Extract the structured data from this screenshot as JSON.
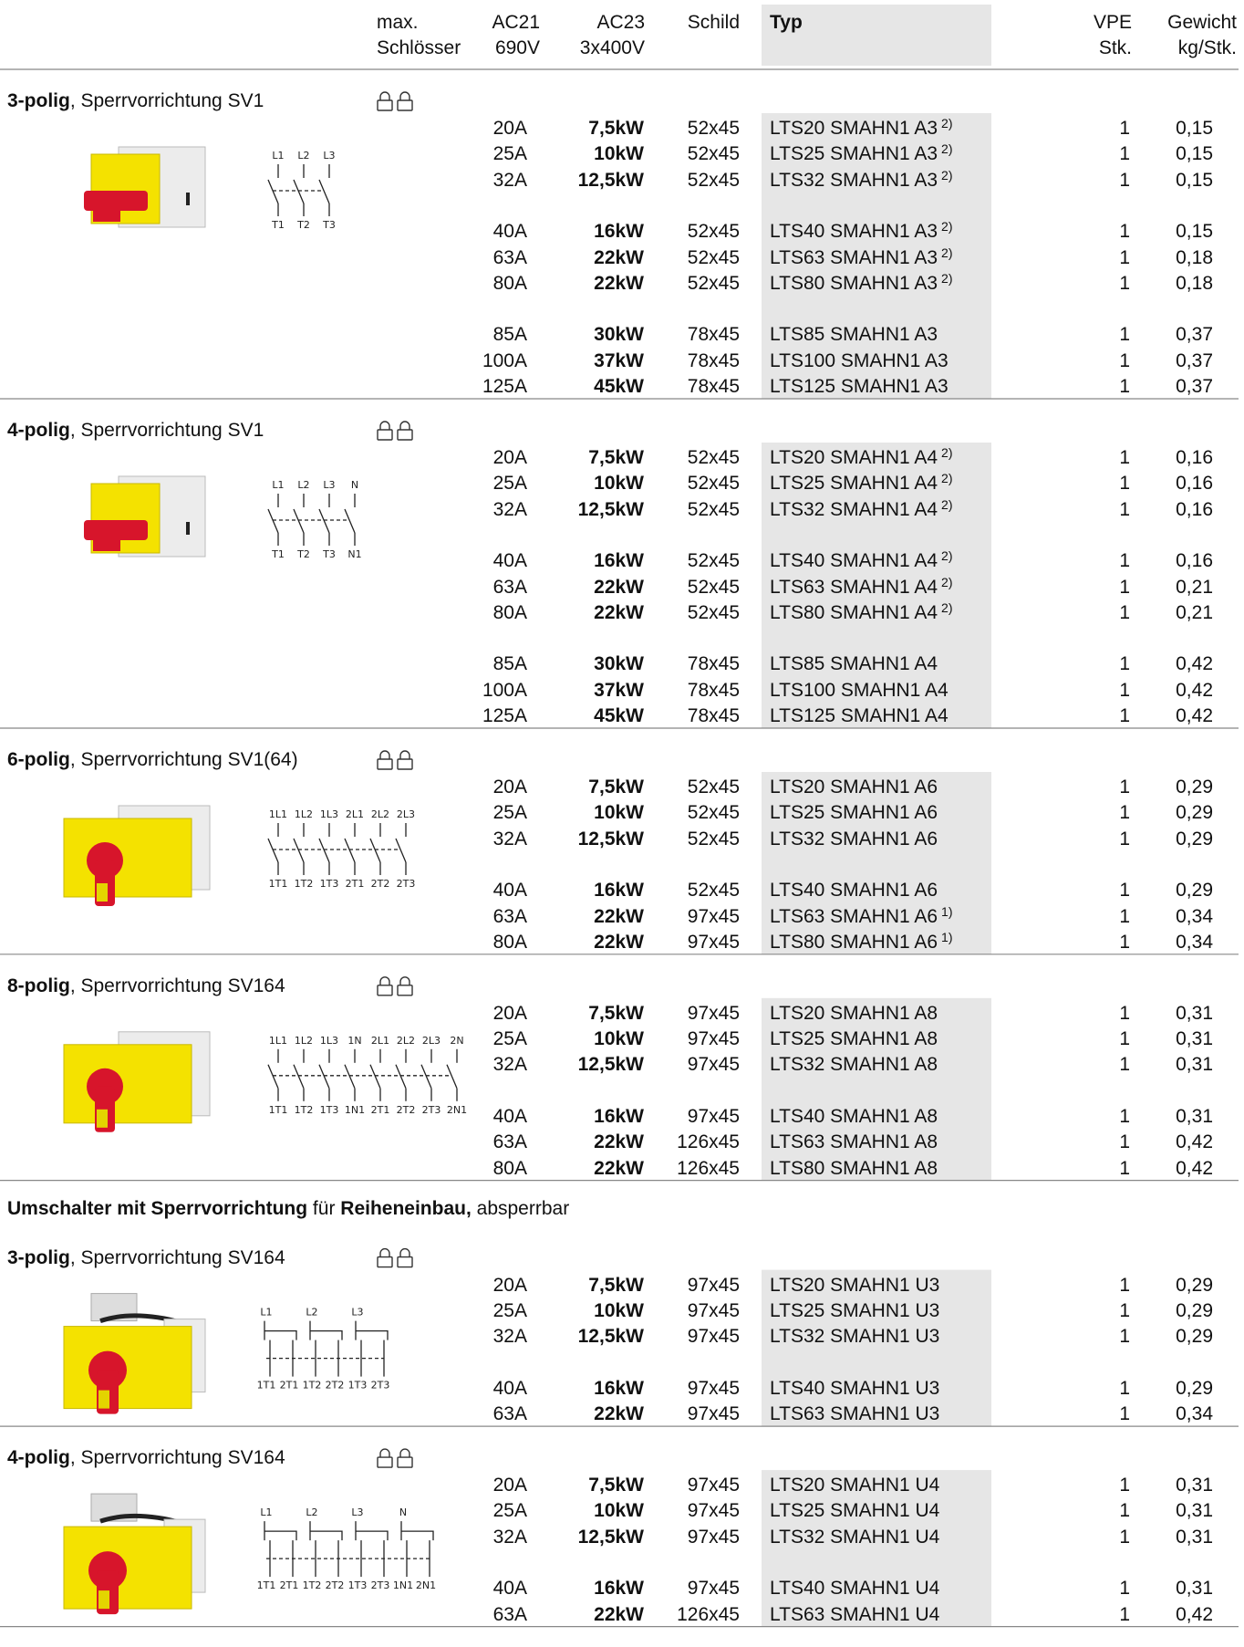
{
  "header": {
    "columns": [
      {
        "lines": [
          "max.",
          "Schlösser"
        ]
      },
      {
        "lines": [
          "AC21",
          "690V"
        ]
      },
      {
        "lines": [
          "AC23",
          "3x400V"
        ]
      },
      {
        "lines": [
          "Schild"
        ]
      },
      {
        "lines": [
          "Typ"
        ]
      },
      {
        "lines": [
          "VPE",
          "Stk."
        ]
      },
      {
        "lines": [
          "Gewicht",
          "kg/Stk."
        ]
      }
    ]
  },
  "blocks": [
    {
      "title_bold": "3-polig",
      "title_rest": ", Sperrvorrichtung SV1",
      "diagram": {
        "top": [
          "L1",
          "L2",
          "L3"
        ],
        "bottom": [
          "T1",
          "T2",
          "T3"
        ]
      },
      "groups": [
        [
          {
            "ac21": "20A",
            "ac23": "7,5kW",
            "schild": "52x45",
            "typ": "LTS20 SMAHN1 A3",
            "note": "2)",
            "vpe": "1",
            "kg": "0,15"
          },
          {
            "ac21": "25A",
            "ac23": "10kW",
            "schild": "52x45",
            "typ": "LTS25 SMAHN1 A3",
            "note": "2)",
            "vpe": "1",
            "kg": "0,15"
          },
          {
            "ac21": "32A",
            "ac23": "12,5kW",
            "schild": "52x45",
            "typ": "LTS32 SMAHN1 A3",
            "note": "2)",
            "vpe": "1",
            "kg": "0,15"
          }
        ],
        [
          {
            "ac21": "40A",
            "ac23": "16kW",
            "schild": "52x45",
            "typ": "LTS40 SMAHN1 A3",
            "note": "2)",
            "vpe": "1",
            "kg": "0,15"
          },
          {
            "ac21": "63A",
            "ac23": "22kW",
            "schild": "52x45",
            "typ": "LTS63 SMAHN1 A3",
            "note": "2)",
            "vpe": "1",
            "kg": "0,18"
          },
          {
            "ac21": "80A",
            "ac23": "22kW",
            "schild": "52x45",
            "typ": "LTS80 SMAHN1 A3",
            "note": "2)",
            "vpe": "1",
            "kg": "0,18"
          }
        ],
        [
          {
            "ac21": "85A",
            "ac23": "30kW",
            "schild": "78x45",
            "typ": "LTS85 SMAHN1 A3",
            "vpe": "1",
            "kg": "0,37"
          },
          {
            "ac21": "100A",
            "ac23": "37kW",
            "schild": "78x45",
            "typ": "LTS100 SMAHN1 A3",
            "vpe": "1",
            "kg": "0,37"
          },
          {
            "ac21": "125A",
            "ac23": "45kW",
            "schild": "78x45",
            "typ": "LTS125 SMAHN1 A3",
            "vpe": "1",
            "kg": "0,37"
          }
        ]
      ]
    },
    {
      "title_bold": "4-polig",
      "title_rest": ", Sperrvorrichtung SV1",
      "diagram": {
        "top": [
          "L1",
          "L2",
          "L3",
          "N"
        ],
        "bottom": [
          "T1",
          "T2",
          "T3",
          "N1"
        ]
      },
      "groups": [
        [
          {
            "ac21": "20A",
            "ac23": "7,5kW",
            "schild": "52x45",
            "typ": "LTS20 SMAHN1 A4",
            "note": "2)",
            "vpe": "1",
            "kg": "0,16"
          },
          {
            "ac21": "25A",
            "ac23": "10kW",
            "schild": "52x45",
            "typ": "LTS25 SMAHN1 A4",
            "note": "2)",
            "vpe": "1",
            "kg": "0,16"
          },
          {
            "ac21": "32A",
            "ac23": "12,5kW",
            "schild": "52x45",
            "typ": "LTS32 SMAHN1 A4",
            "note": "2)",
            "vpe": "1",
            "kg": "0,16"
          }
        ],
        [
          {
            "ac21": "40A",
            "ac23": "16kW",
            "schild": "52x45",
            "typ": "LTS40 SMAHN1 A4",
            "note": "2)",
            "vpe": "1",
            "kg": "0,16"
          },
          {
            "ac21": "63A",
            "ac23": "22kW",
            "schild": "52x45",
            "typ": "LTS63 SMAHN1 A4",
            "note": "2)",
            "vpe": "1",
            "kg": "0,21"
          },
          {
            "ac21": "80A",
            "ac23": "22kW",
            "schild": "52x45",
            "typ": "LTS80 SMAHN1 A4",
            "note": "2)",
            "vpe": "1",
            "kg": "0,21"
          }
        ],
        [
          {
            "ac21": "85A",
            "ac23": "30kW",
            "schild": "78x45",
            "typ": "LTS85 SMAHN1 A4",
            "vpe": "1",
            "kg": "0,42"
          },
          {
            "ac21": "100A",
            "ac23": "37kW",
            "schild": "78x45",
            "typ": "LTS100 SMAHN1 A4",
            "vpe": "1",
            "kg": "0,42"
          },
          {
            "ac21": "125A",
            "ac23": "45kW",
            "schild": "78x45",
            "typ": "LTS125 SMAHN1 A4",
            "vpe": "1",
            "kg": "0,42"
          }
        ]
      ]
    },
    {
      "title_bold": "6-polig",
      "title_rest": ", Sperrvorrichtung SV1(64)",
      "diagram": {
        "top": [
          "1L1",
          "1L2",
          "1L3",
          "2L1",
          "2L2",
          "2L3"
        ],
        "bottom": [
          "1T1",
          "1T2",
          "1T3",
          "2T1",
          "2T2",
          "2T3"
        ]
      },
      "groups": [
        [
          {
            "ac21": "20A",
            "ac23": "7,5kW",
            "schild": "52x45",
            "typ": "LTS20 SMAHN1 A6",
            "vpe": "1",
            "kg": "0,29"
          },
          {
            "ac21": "25A",
            "ac23": "10kW",
            "schild": "52x45",
            "typ": "LTS25 SMAHN1 A6",
            "vpe": "1",
            "kg": "0,29"
          },
          {
            "ac21": "32A",
            "ac23": "12,5kW",
            "schild": "52x45",
            "typ": "LTS32 SMAHN1 A6",
            "vpe": "1",
            "kg": "0,29"
          }
        ],
        [
          {
            "ac21": "40A",
            "ac23": "16kW",
            "schild": "52x45",
            "typ": "LTS40 SMAHN1 A6",
            "vpe": "1",
            "kg": "0,29"
          },
          {
            "ac21": "63A",
            "ac23": "22kW",
            "schild": "97x45",
            "typ": "LTS63 SMAHN1 A6",
            "note": "1)",
            "vpe": "1",
            "kg": "0,34"
          },
          {
            "ac21": "80A",
            "ac23": "22kW",
            "schild": "97x45",
            "typ": "LTS80 SMAHN1 A6",
            "note": "1)",
            "vpe": "1",
            "kg": "0,34"
          }
        ]
      ]
    },
    {
      "title_bold": "8-polig",
      "title_rest": ", Sperrvorrichtung SV164",
      "diagram": {
        "top": [
          "1L1",
          "1L2",
          "1L3",
          "1N",
          "2L1",
          "2L2",
          "2L3",
          "2N"
        ],
        "bottom": [
          "1T1",
          "1T2",
          "1T3",
          "1N1",
          "2T1",
          "2T2",
          "2T3",
          "2N1"
        ]
      },
      "groups": [
        [
          {
            "ac21": "20A",
            "ac23": "7,5kW",
            "schild": "97x45",
            "typ": "LTS20 SMAHN1 A8",
            "vpe": "1",
            "kg": "0,31"
          },
          {
            "ac21": "25A",
            "ac23": "10kW",
            "schild": "97x45",
            "typ": "LTS25 SMAHN1 A8",
            "vpe": "1",
            "kg": "0,31"
          },
          {
            "ac21": "32A",
            "ac23": "12,5kW",
            "schild": "97x45",
            "typ": "LTS32 SMAHN1 A8",
            "vpe": "1",
            "kg": "0,31"
          }
        ],
        [
          {
            "ac21": "40A",
            "ac23": "16kW",
            "schild": "97x45",
            "typ": "LTS40 SMAHN1 A8",
            "vpe": "1",
            "kg": "0,31"
          },
          {
            "ac21": "63A",
            "ac23": "22kW",
            "schild": "126x45",
            "typ": "LTS63 SMAHN1 A8",
            "vpe": "1",
            "kg": "0,42"
          },
          {
            "ac21": "80A",
            "ac23": "22kW",
            "schild": "126x45",
            "typ": "LTS80 SMAHN1 A8",
            "vpe": "1",
            "kg": "0,42"
          }
        ]
      ]
    },
    {
      "heading": [
        {
          "text": "Umschalter mit Sperrvorrichtung",
          "bold": true
        },
        {
          "text": " für ",
          "bold": false
        },
        {
          "text": "Reiheneinbau,",
          "bold": true
        },
        {
          "text": " absperrbar",
          "bold": false
        }
      ]
    },
    {
      "title_bold": "3-polig",
      "title_rest": ", Sperrvorrichtung SV164",
      "diagram": {
        "top": [
          "L1",
          "L2",
          "L3"
        ],
        "bottom": [
          "1T1",
          "2T1",
          "1T2",
          "2T2",
          "1T3",
          "2T3"
        ]
      },
      "groups": [
        [
          {
            "ac21": "20A",
            "ac23": "7,5kW",
            "schild": "97x45",
            "typ": "LTS20 SMAHN1 U3",
            "vpe": "1",
            "kg": "0,29"
          },
          {
            "ac21": "25A",
            "ac23": "10kW",
            "schild": "97x45",
            "typ": "LTS25 SMAHN1 U3",
            "vpe": "1",
            "kg": "0,29"
          },
          {
            "ac21": "32A",
            "ac23": "12,5kW",
            "schild": "97x45",
            "typ": "LTS32 SMAHN1 U3",
            "vpe": "1",
            "kg": "0,29"
          }
        ],
        [
          {
            "ac21": "40A",
            "ac23": "16kW",
            "schild": "97x45",
            "typ": "LTS40 SMAHN1 U3",
            "vpe": "1",
            "kg": "0,29"
          },
          {
            "ac21": "63A",
            "ac23": "22kW",
            "schild": "97x45",
            "typ": "LTS63 SMAHN1 U3",
            "vpe": "1",
            "kg": "0,34"
          }
        ]
      ]
    },
    {
      "title_bold": "4-polig",
      "title_rest": ", Sperrvorrichtung SV164",
      "diagram": {
        "top": [
          "L1",
          "L2",
          "L3",
          "N"
        ],
        "bottom": [
          "1T1",
          "2T1",
          "1T2",
          "2T2",
          "1T3",
          "2T3",
          "1N1",
          "2N1"
        ]
      },
      "groups": [
        [
          {
            "ac21": "20A",
            "ac23": "7,5kW",
            "schild": "97x45",
            "typ": "LTS20 SMAHN1 U4",
            "vpe": "1",
            "kg": "0,31"
          },
          {
            "ac21": "25A",
            "ac23": "10kW",
            "schild": "97x45",
            "typ": "LTS25 SMAHN1 U4",
            "vpe": "1",
            "kg": "0,31"
          },
          {
            "ac21": "32A",
            "ac23": "12,5kW",
            "schild": "97x45",
            "typ": "LTS32 SMAHN1 U4",
            "vpe": "1",
            "kg": "0,31"
          }
        ],
        [
          {
            "ac21": "40A",
            "ac23": "16kW",
            "schild": "97x45",
            "typ": "LTS40 SMAHN1 U4",
            "vpe": "1",
            "kg": "0,31"
          },
          {
            "ac21": "63A",
            "ac23": "22kW",
            "schild": "126x45",
            "typ": "LTS63 SMAHN1 U4",
            "vpe": "1",
            "kg": "0,42"
          }
        ]
      ]
    }
  ]
}
